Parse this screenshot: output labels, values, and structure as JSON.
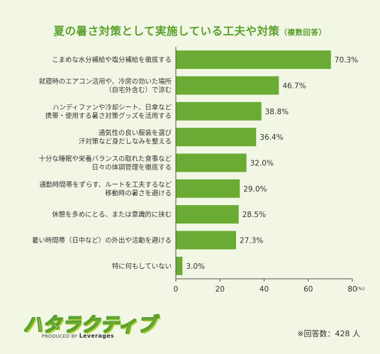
{
  "chart_data": {
    "type": "bar",
    "orientation": "horizontal",
    "title": "夏の暑さ対策として実施している工夫や対策",
    "subtitle": "（複数回答）",
    "categories": [
      [
        "こまめな水分補給や塩分補給を徹底する"
      ],
      [
        "就寝時のエアコン活用や、冷房の効いた場所",
        "（自宅外含む）で涼む"
      ],
      [
        "ハンディファンや冷却シート、日傘など",
        "携帯・使用する暑さ対策グッズを活用する"
      ],
      [
        "通気性の良い服装を選び",
        "汗対策など身だしなみを整える"
      ],
      [
        "十分な睡眠や栄養バランスの取れた食事など",
        "日々の体調管理を徹底する"
      ],
      [
        "通勤時間帯をずらす、ルートを工夫するなど",
        "移動時の暑さを避ける"
      ],
      [
        "休憩を多めにとる、または意識的に挟む"
      ],
      [
        "暑い時間帯（日中など）の外出や活動を避ける"
      ],
      [
        "特に何もしていない"
      ]
    ],
    "values": [
      70.3,
      46.7,
      38.8,
      36.4,
      32.0,
      29.0,
      28.5,
      27.3,
      3.0
    ],
    "value_labels": [
      "70.3%",
      "46.7%",
      "38.8%",
      "36.4%",
      "32.0%",
      "29.0%",
      "28.5%",
      "27.3%",
      "3.0%"
    ],
    "xlim": [
      0,
      80
    ],
    "xticks": [
      "0",
      "20",
      "40",
      "60",
      "80"
    ],
    "x_unit": "(%)",
    "bar_color": "#6aab34",
    "grid": false
  },
  "brand": {
    "logo_text": "ハタラクティブ",
    "logo_produced": "PRODUCED BY",
    "logo_company": "Leverages"
  },
  "footnote": "※回答数：428 人",
  "colors": {
    "background": "#f2f7e5",
    "title": "#5aa02c",
    "bar": "#6aab34"
  }
}
